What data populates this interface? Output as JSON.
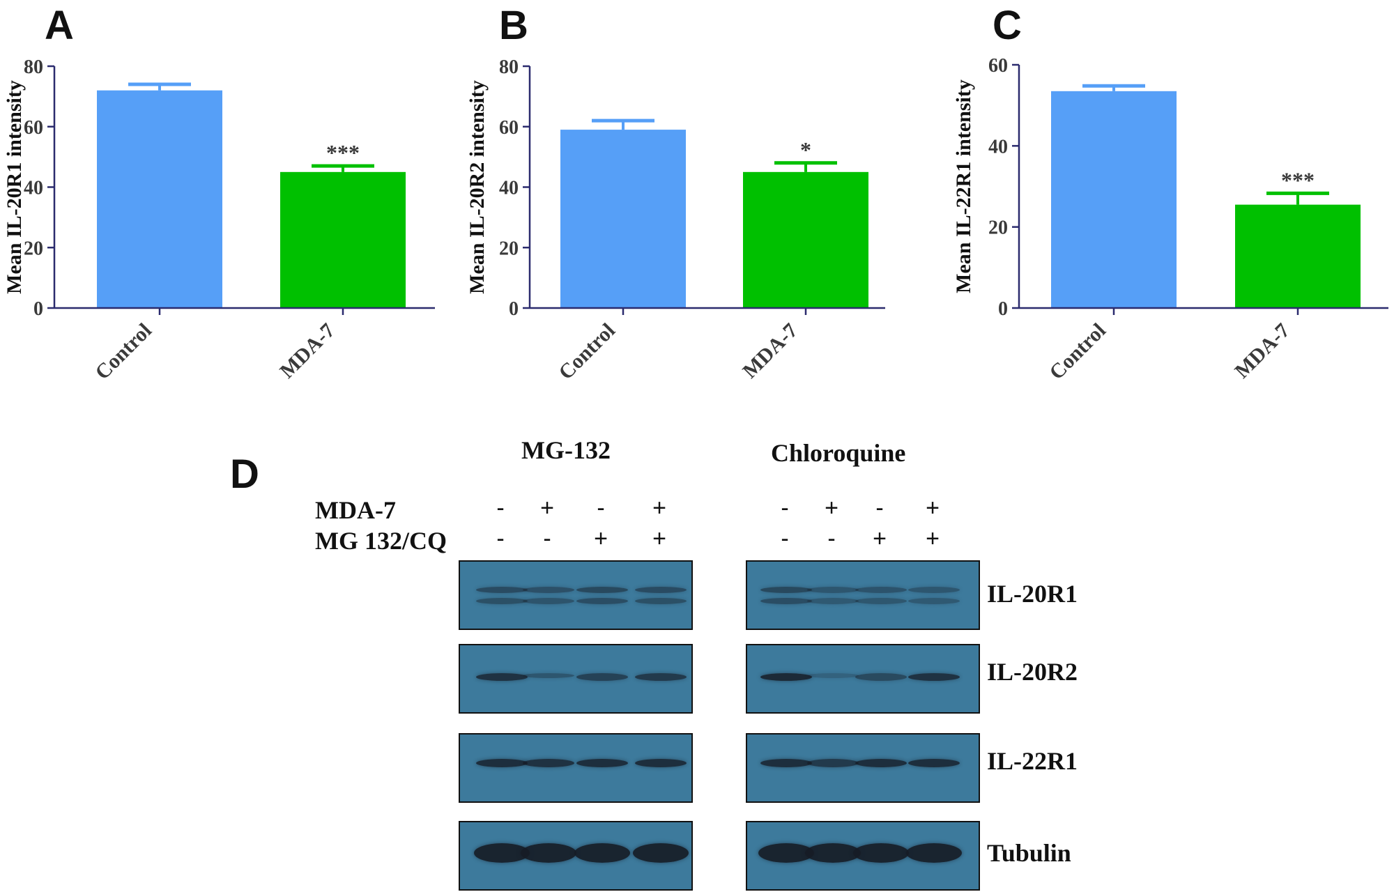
{
  "chart_data": [
    {
      "panel": "A",
      "type": "bar",
      "categories": [
        "Control",
        "MDA-7"
      ],
      "values": [
        72,
        45
      ],
      "errors": [
        2,
        2
      ],
      "annotations": [
        "",
        "***"
      ],
      "ylabel": "Mean IL-20R1 intensity",
      "ylim": [
        0,
        80
      ],
      "yticks": [
        0,
        20,
        40,
        60,
        80
      ],
      "colors": [
        "#569ff7",
        "#00c000"
      ]
    },
    {
      "panel": "B",
      "type": "bar",
      "categories": [
        "Control",
        "MDA-7"
      ],
      "values": [
        59,
        45
      ],
      "errors": [
        3,
        3
      ],
      "annotations": [
        "",
        "*"
      ],
      "ylabel": "Mean IL-20R2 intensity",
      "ylim": [
        0,
        80
      ],
      "yticks": [
        0,
        20,
        40,
        60,
        80
      ],
      "colors": [
        "#569ff7",
        "#00c000"
      ]
    },
    {
      "panel": "C",
      "type": "bar",
      "categories": [
        "Control",
        "MDA-7"
      ],
      "values": [
        53.5,
        25.5
      ],
      "errors": [
        1.3,
        2.8
      ],
      "annotations": [
        "",
        "***"
      ],
      "ylabel": "Mean IL-22R1 intensity",
      "ylim": [
        0,
        60
      ],
      "yticks": [
        0,
        20,
        40,
        60
      ],
      "colors": [
        "#569ff7",
        "#00c000"
      ]
    }
  ],
  "blot": {
    "panel": "D",
    "groups": [
      "MG-132",
      "Chloroquine"
    ],
    "condition_rows": [
      {
        "label": "MDA-7",
        "signs": [
          "-",
          "+",
          "-",
          "+"
        ]
      },
      {
        "label": "MG 132/CQ",
        "signs": [
          "-",
          "-",
          "+",
          "+"
        ]
      }
    ],
    "proteins": [
      "IL-20R1",
      "IL-20R2",
      "IL-22R1",
      "Tubulin"
    ]
  }
}
